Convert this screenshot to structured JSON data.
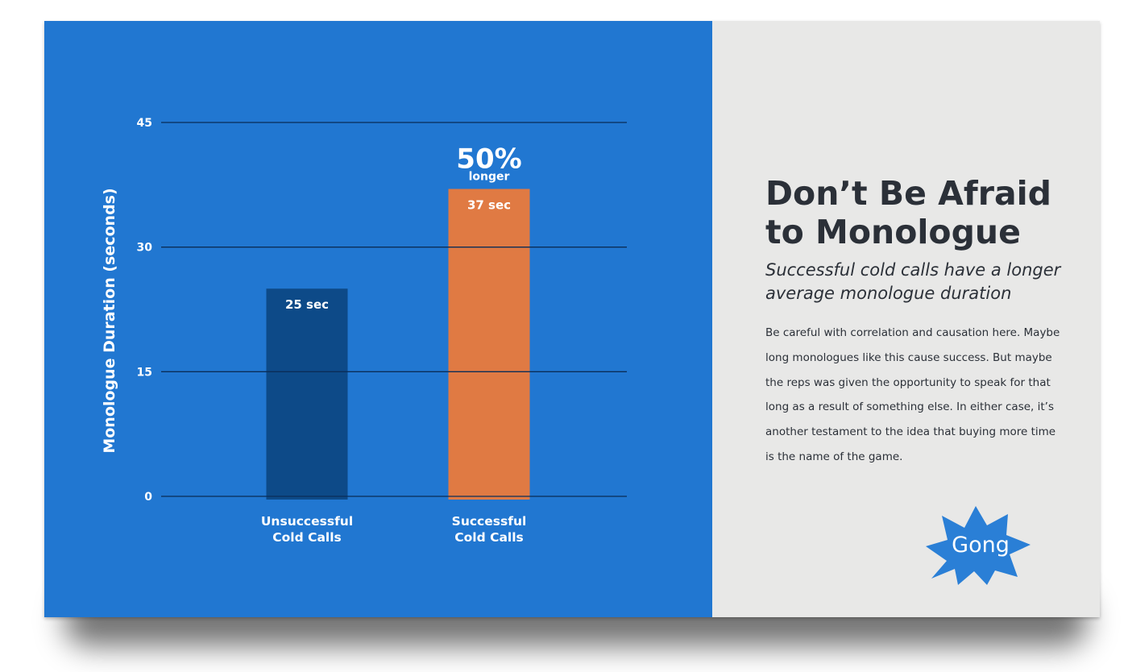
{
  "colors": {
    "chart_background": "#2177d1",
    "side_background": "#e8e8e7",
    "bar_dark": "#0d4a88",
    "bar_orange": "#e07a43",
    "grid": "#0b2d57",
    "text_dark": "#2b3038",
    "text_white": "#ffffff",
    "badge_blue": "#2a7fd6"
  },
  "chart_data": {
    "type": "bar",
    "ylabel": "Monologue Duration (seconds)",
    "ylim": [
      0,
      45
    ],
    "yticks": [
      0,
      15,
      30,
      45
    ],
    "grid": true,
    "categories": [
      "Unsuccessful\nCold Calls",
      "Successful\nCold Calls"
    ],
    "values": [
      25,
      37
    ],
    "value_labels": [
      "25 sec",
      "37 sec"
    ],
    "bar_colors": [
      "#0d4a88",
      "#e07a43"
    ],
    "annotation": {
      "big": "50%",
      "small": "longer",
      "category_index": 1
    }
  },
  "side": {
    "title_line1": "Don’t Be Afraid",
    "title_line2": "to Monologue",
    "subtitle_line1": "Successful cold calls have a longer",
    "subtitle_line2": "average monologue duration",
    "body": "Be careful with correlation and causation here. Maybe long monologues like this cause success. But maybe the reps was given the opportunity to speak for that long as a result of something else. In either case, it’s another testament to the idea that buying more time is the name of the game.",
    "logo_text": "Gong",
    "logo_icon": "starburst-badge-icon"
  }
}
